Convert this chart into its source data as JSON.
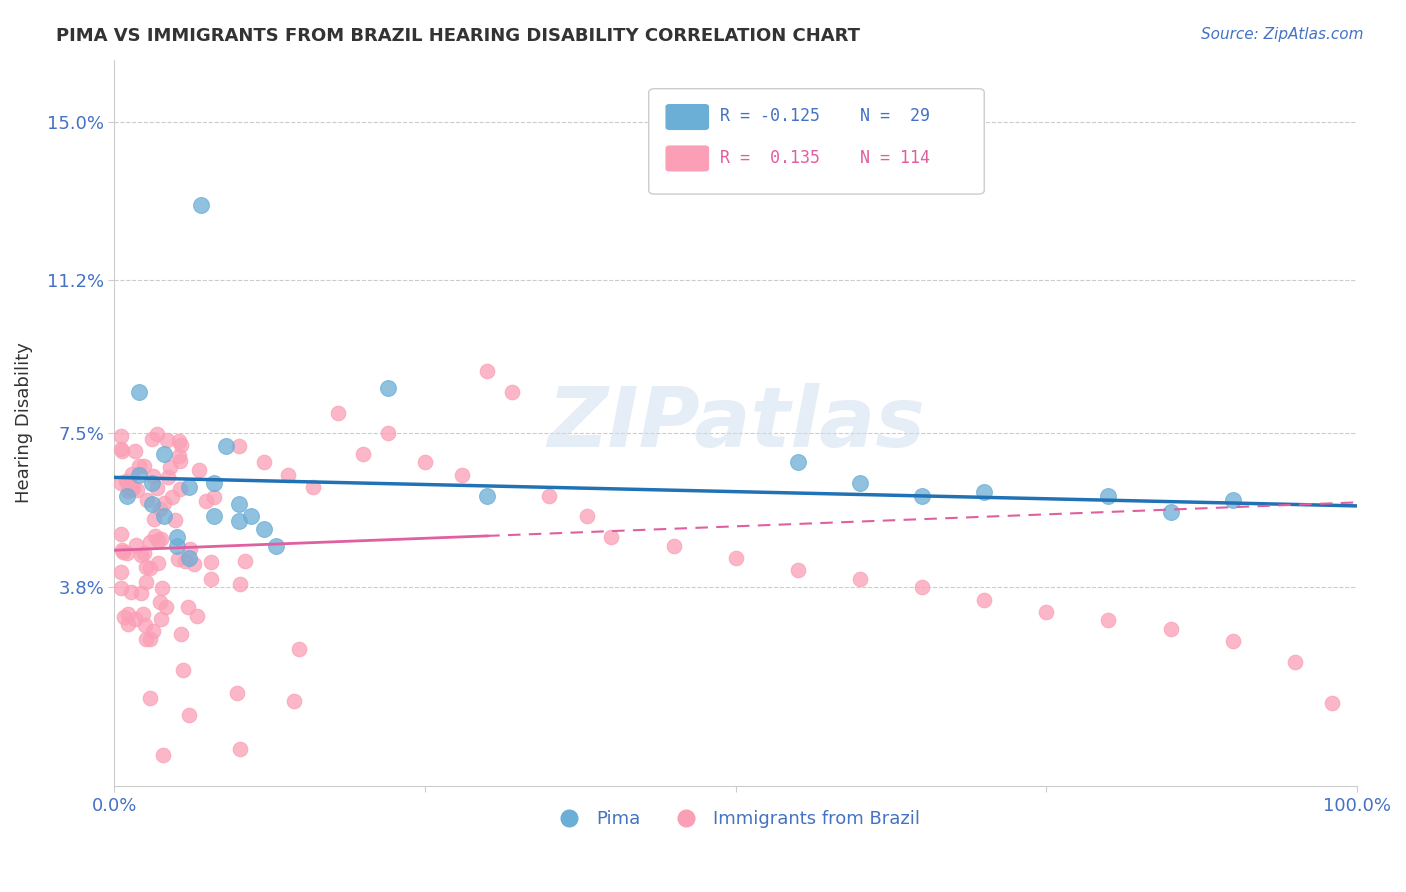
{
  "title": "PIMA VS IMMIGRANTS FROM BRAZIL HEARING DISABILITY CORRELATION CHART",
  "source": "Source: ZipAtlas.com",
  "ylabel": "Hearing Disability",
  "xlim": [
    0.0,
    1.0
  ],
  "ylim": [
    -0.01,
    0.165
  ],
  "xticks": [
    0.0,
    0.25,
    0.5,
    0.75,
    1.0
  ],
  "xticklabels": [
    "0.0%",
    "",
    "",
    "",
    "100.0%"
  ],
  "yticks": [
    0.038,
    0.075,
    0.112,
    0.15
  ],
  "yticklabels": [
    "3.8%",
    "7.5%",
    "11.2%",
    "15.0%"
  ],
  "pima_color": "#6baed6",
  "brazil_color": "#fa9fb5",
  "pima_line_color": "#2171b5",
  "brazil_line_color": "#e05fa0",
  "watermark": "ZIPatlas",
  "background_color": "#ffffff",
  "grid_color": "#cccccc",
  "tick_color": "#4472c4",
  "title_color": "#333333",
  "source_color": "#4472c4",
  "legend_pima_R": "R = -0.125",
  "legend_pima_N": "N =  29",
  "legend_brazil_R": "R =  0.135",
  "legend_brazil_N": "N = 114"
}
